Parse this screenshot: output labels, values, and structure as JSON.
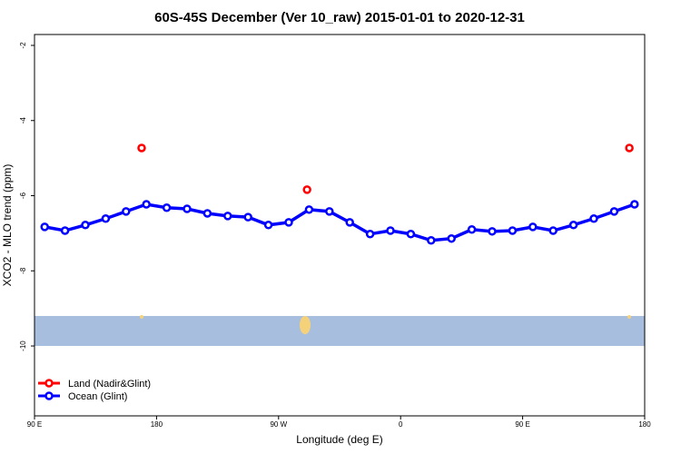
{
  "chart_data": {
    "type": "scatter-line",
    "title": "60S-45S December (Ver 10_raw)   2015-01-01 to 2020-12-31",
    "x_label": "Longitude (deg E)",
    "y_label": "XCO2 - MLO trend (ppm)",
    "xlim": [
      90,
      540
    ],
    "ylim": [
      -11.86,
      -1.71
    ],
    "xticks": [
      {
        "value": 90,
        "label": "90 E"
      },
      {
        "value": 180,
        "label": "180"
      },
      {
        "value": 270,
        "label": "90 W"
      },
      {
        "value": 360,
        "label": "0"
      },
      {
        "value": 450,
        "label": "90 E"
      },
      {
        "value": 540,
        "label": "180"
      }
    ],
    "yticks": [
      -2,
      -4,
      -6,
      -8,
      -10
    ],
    "legend": "bottom-left",
    "series": [
      {
        "name": "Land (Nadir&Glint)",
        "color": "#ff0000",
        "line": false,
        "x": [
          169,
          291,
          528.7
        ],
        "values": [
          -4.73,
          -5.84,
          -4.73
        ]
      },
      {
        "name": "Ocean (Glint)",
        "color": "#0000ff",
        "line": true,
        "x": [
          97.5,
          112.5,
          127.5,
          142.5,
          157.5,
          172.5,
          187.5,
          202.5,
          217.5,
          232.5,
          247.5,
          262.5,
          277.5,
          292.5,
          307.5,
          322.5,
          337.5,
          352.5,
          367.5,
          382.5,
          397.5,
          412.5,
          427.5,
          442.5,
          457.5,
          472.5,
          487.5,
          502.5,
          517.5,
          532.5
        ],
        "values": [
          -6.83,
          -6.93,
          -6.78,
          -6.61,
          -6.42,
          -6.23,
          -6.32,
          -6.35,
          -6.47,
          -6.54,
          -6.57,
          -6.78,
          -6.71,
          -6.37,
          -6.42,
          -6.71,
          -7.02,
          -6.93,
          -7.02,
          -7.19,
          -7.14,
          -6.9,
          -6.95,
          -6.93,
          -6.83,
          -6.93,
          -6.78,
          -6.61,
          -6.42,
          -6.23
        ]
      }
    ]
  }
}
